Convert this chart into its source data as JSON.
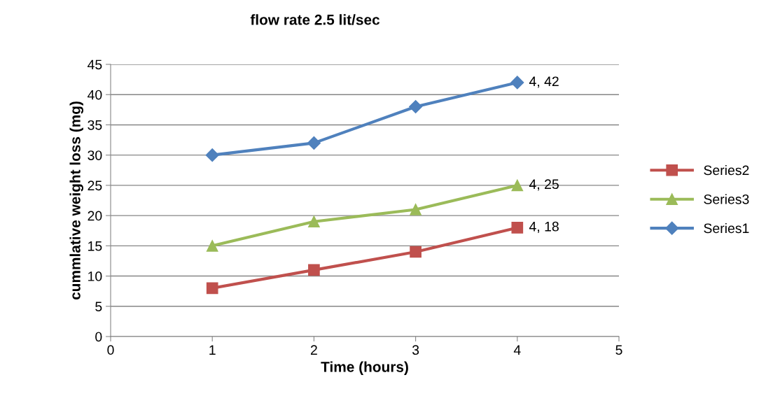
{
  "chart_data": {
    "type": "line",
    "title": "flow rate 2.5 lit/sec",
    "xlabel": "Time (hours)",
    "ylabel": "cummlative weight loss (mg)",
    "x": [
      1,
      2,
      3,
      4
    ],
    "series": [
      {
        "name": "Series2",
        "color": "#c0504d",
        "marker": "square",
        "values": [
          8,
          11,
          14,
          18
        ],
        "value_labels": [
          null,
          null,
          null,
          "4, 18"
        ]
      },
      {
        "name": "Series3",
        "color": "#9bbb59",
        "marker": "triangle",
        "values": [
          15,
          19,
          21,
          25
        ],
        "value_labels": [
          null,
          null,
          null,
          "4, 25"
        ]
      },
      {
        "name": "Series1",
        "color": "#4f81bd",
        "marker": "diamond",
        "values": [
          30,
          32,
          38,
          42
        ],
        "value_labels": [
          null,
          null,
          null,
          "4, 42"
        ]
      }
    ],
    "xlim": [
      0,
      5
    ],
    "xticks": [
      0,
      1,
      2,
      3,
      4,
      5
    ],
    "ylim": [
      0,
      45
    ],
    "yticks": [
      0,
      5,
      10,
      15,
      20,
      25,
      30,
      35,
      40,
      45
    ],
    "grid": "y",
    "legend": "right",
    "line_style": "solid"
  }
}
